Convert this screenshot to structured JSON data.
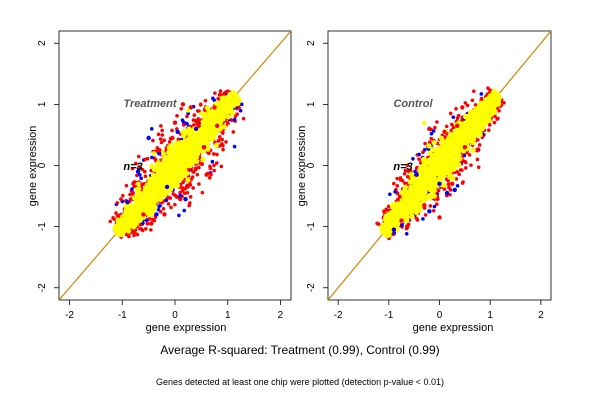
{
  "figure": {
    "summary": "Average R-squared: Treatment (0.99), Control (0.99)",
    "footnote": "Genes detected at least one chip were plotted (detection p-value < 0.01)"
  },
  "chart_data": [
    {
      "type": "scatter",
      "title": "Treatment",
      "annotation": "n=3",
      "xlabel": "gene expression",
      "ylabel": "gene expression",
      "xlim": [
        -2.2,
        2.2
      ],
      "ylim": [
        -2.2,
        2.2
      ],
      "xticks": [
        -2,
        -1,
        0,
        1,
        2
      ],
      "yticks": [
        -2,
        -1,
        0,
        1,
        2
      ],
      "diagonal": {
        "x": [
          -2.2,
          2.2
        ],
        "y": [
          -2.2,
          2.2
        ],
        "color": "#cc8800"
      },
      "band": {
        "x_range": [
          -1.1,
          1.15
        ],
        "main_width": 0.15,
        "outer_width": 0.55,
        "colors": [
          "#ff0000",
          "#0000ff",
          "#ffff00"
        ]
      },
      "series": [
        {
          "color": "#0000ff",
          "x": [
            -0.7,
            -0.5,
            -0.3,
            0.1,
            0.4,
            0.2,
            -0.35,
            -0.9,
            0.55,
            0.05,
            -0.15
          ],
          "y": [
            -0.1,
            0.45,
            0.2,
            -0.5,
            0.6,
            -0.55,
            -0.8,
            -0.6,
            0.3,
            0.55,
            -0.35
          ]
        },
        {
          "color": "#ff0000",
          "x": [
            -0.45,
            -0.6,
            0.0,
            0.3,
            0.55,
            0.75,
            0.15,
            -0.2,
            0.6,
            -0.8,
            -0.05,
            0.35,
            0.45,
            -0.3,
            0.1,
            0.8
          ],
          "y": [
            -0.95,
            -0.8,
            0.7,
            0.95,
            0.3,
            0.95,
            1.0,
            -0.8,
            -0.15,
            -0.45,
            0.45,
            -0.1,
            0.65,
            0.25,
            -0.55,
            0.65
          ]
        },
        {
          "color": "#ffff00",
          "x": [
            -0.4,
            0.25,
            -0.7,
            0.5
          ],
          "y": [
            0.2,
            0.9,
            -0.3,
            0.85
          ]
        }
      ]
    },
    {
      "type": "scatter",
      "title": "Control",
      "annotation": "n=3",
      "xlabel": "gene expression",
      "ylabel": "gene expression",
      "xlim": [
        -2.2,
        2.2
      ],
      "ylim": [
        -2.2,
        2.2
      ],
      "xticks": [
        -2,
        -1,
        0,
        1,
        2
      ],
      "yticks": [
        -2,
        -1,
        0,
        1,
        2
      ],
      "diagonal": {
        "x": [
          -2.2,
          2.2
        ],
        "y": [
          -2.2,
          2.2
        ],
        "color": "#cc8800"
      },
      "band": {
        "x_range": [
          -1.1,
          1.15
        ],
        "main_width": 0.15,
        "outer_width": 0.45,
        "colors": [
          "#ff0000",
          "#0000ff",
          "#ffff00"
        ]
      },
      "series": [
        {
          "color": "#0000ff",
          "x": [
            0.0,
            0.15,
            -0.2,
            -0.9,
            0.3,
            -0.45
          ],
          "y": [
            -0.3,
            -0.45,
            -0.75,
            -1.05,
            -0.4,
            -0.15
          ]
        },
        {
          "color": "#ff0000",
          "x": [
            -0.2,
            0.1,
            0.35,
            0.45,
            -0.3,
            0.0,
            0.25,
            -0.75,
            0.5
          ],
          "y": [
            0.6,
            0.55,
            0.65,
            0.95,
            -0.65,
            -0.85,
            -0.3,
            -0.9,
            0.3
          ]
        },
        {
          "color": "#ffff00",
          "x": [
            -0.3,
            0.05,
            0.2
          ],
          "y": [
            0.7,
            0.4,
            -0.2
          ]
        }
      ]
    }
  ]
}
